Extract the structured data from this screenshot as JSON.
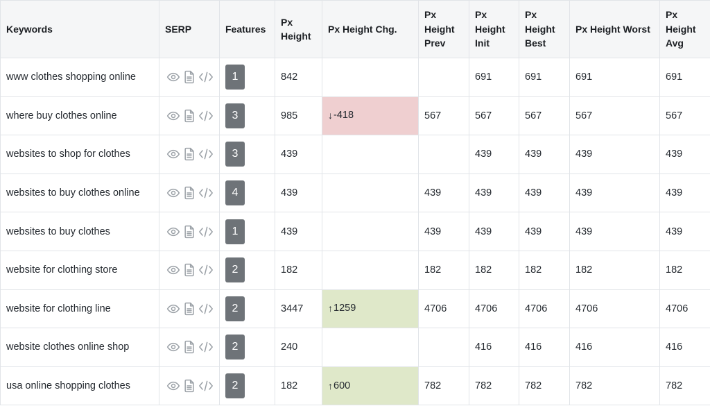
{
  "colors": {
    "header_bg": "#f5f6f7",
    "border": "#e1e4e8",
    "badge_bg": "#6e7378",
    "negative_bg": "#efcfd0",
    "positive_bg": "#dfe8c9",
    "icon_color": "#9aa0a6"
  },
  "icons": {
    "serp": [
      "eye-icon",
      "document-icon",
      "code-icon"
    ],
    "down": "↓",
    "up": "↑"
  },
  "columns": [
    {
      "key": "keyword",
      "label": "Keywords"
    },
    {
      "key": "serp",
      "label": "SERP"
    },
    {
      "key": "features",
      "label": "Features"
    },
    {
      "key": "px_height",
      "label": "Px Height"
    },
    {
      "key": "px_height_chg",
      "label": "Px Height Chg."
    },
    {
      "key": "px_height_prev",
      "label": "Px Height Prev"
    },
    {
      "key": "px_height_init",
      "label": "Px Height Init"
    },
    {
      "key": "px_height_best",
      "label": "Px Height Best"
    },
    {
      "key": "px_height_worst",
      "label": "Px Height Worst"
    },
    {
      "key": "px_height_avg",
      "label": "Px Height Avg"
    }
  ],
  "rows": [
    {
      "keyword": "www clothes shopping online",
      "features": "1",
      "px_height": "842",
      "chg": "",
      "chg_dir": "",
      "prev": "",
      "init": "691",
      "best": "691",
      "worst": "691",
      "avg": "691"
    },
    {
      "keyword": "where buy clothes online",
      "features": "3",
      "px_height": "985",
      "chg": "-418",
      "chg_dir": "down",
      "prev": "567",
      "init": "567",
      "best": "567",
      "worst": "567",
      "avg": "567"
    },
    {
      "keyword": "websites to shop for clothes",
      "features": "3",
      "px_height": "439",
      "chg": "",
      "chg_dir": "",
      "prev": "",
      "init": "439",
      "best": "439",
      "worst": "439",
      "avg": "439"
    },
    {
      "keyword": "websites to buy clothes online",
      "features": "4",
      "px_height": "439",
      "chg": "",
      "chg_dir": "",
      "prev": "439",
      "init": "439",
      "best": "439",
      "worst": "439",
      "avg": "439"
    },
    {
      "keyword": "websites to buy clothes",
      "features": "1",
      "px_height": "439",
      "chg": "",
      "chg_dir": "",
      "prev": "439",
      "init": "439",
      "best": "439",
      "worst": "439",
      "avg": "439"
    },
    {
      "keyword": "website for clothing store",
      "features": "2",
      "px_height": "182",
      "chg": "",
      "chg_dir": "",
      "prev": "182",
      "init": "182",
      "best": "182",
      "worst": "182",
      "avg": "182"
    },
    {
      "keyword": "website for clothing line",
      "features": "2",
      "px_height": "3447",
      "chg": "1259",
      "chg_dir": "up",
      "prev": "4706",
      "init": "4706",
      "best": "4706",
      "worst": "4706",
      "avg": "4706"
    },
    {
      "keyword": "website clothes online shop",
      "features": "2",
      "px_height": "240",
      "chg": "",
      "chg_dir": "",
      "prev": "",
      "init": "416",
      "best": "416",
      "worst": "416",
      "avg": "416"
    },
    {
      "keyword": "usa online shopping clothes",
      "features": "2",
      "px_height": "182",
      "chg": "600",
      "chg_dir": "up",
      "prev": "782",
      "init": "782",
      "best": "782",
      "worst": "782",
      "avg": "782"
    }
  ]
}
